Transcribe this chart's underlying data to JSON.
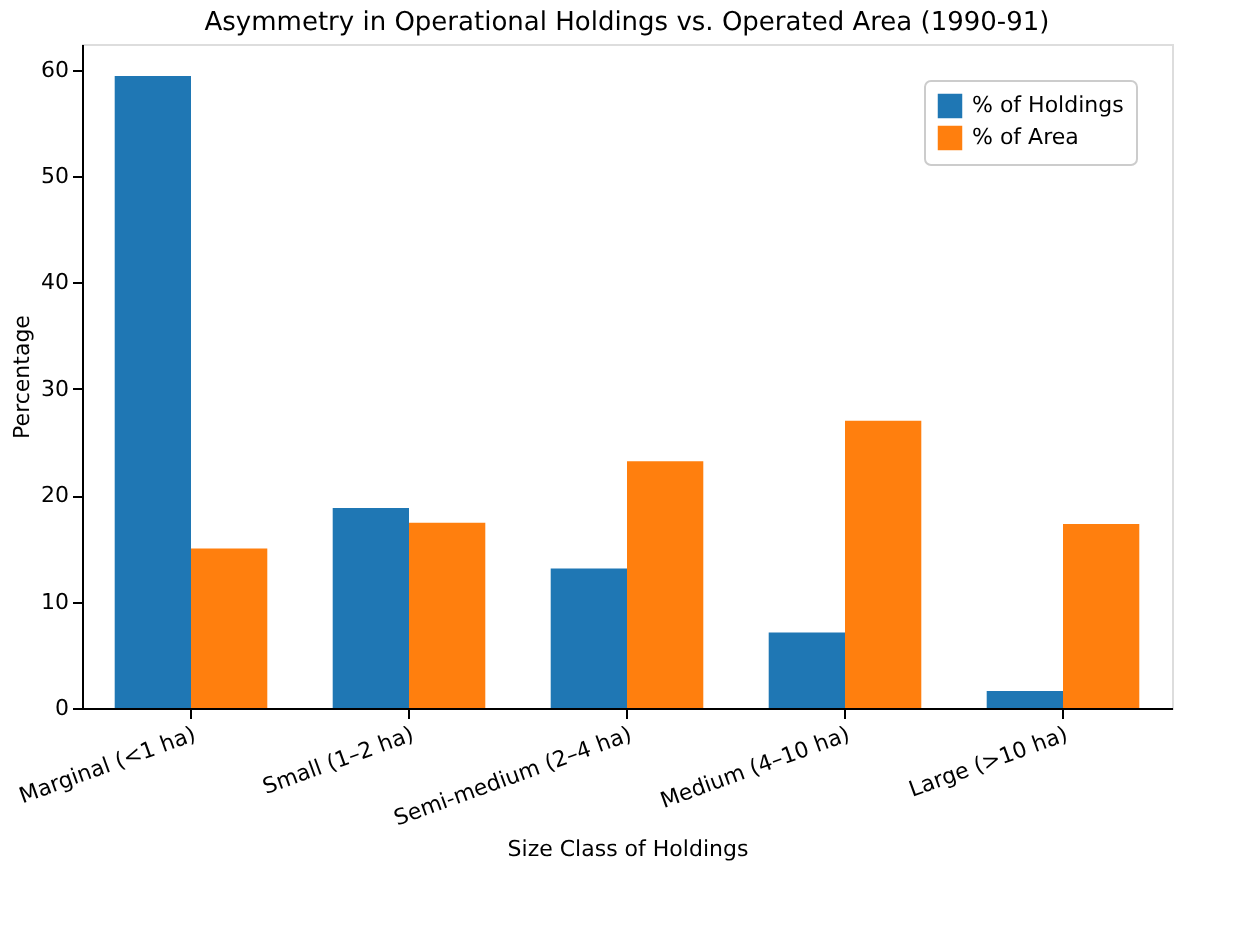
{
  "chart_data": {
    "type": "bar",
    "title": "Asymmetry in Operational Holdings vs. Operated Area (1990-91)",
    "xlabel": "Size Class of Holdings",
    "ylabel": "Percentage",
    "categories": [
      "Marginal (<1 ha)",
      "Small (1–2 ha)",
      "Semi-medium (2–4 ha)",
      "Medium (4–10 ha)",
      "Large (>10 ha)"
    ],
    "series": [
      {
        "name": "% of Holdings",
        "color": "#1f77b4",
        "values": [
          59.4,
          18.8,
          13.1,
          7.1,
          1.6
        ]
      },
      {
        "name": "% of Area",
        "color": "#ff7f0e",
        "values": [
          15.0,
          17.4,
          23.2,
          27.0,
          17.3
        ]
      }
    ],
    "ylim": [
      0,
      62.4
    ],
    "yticks": [
      0,
      10,
      20,
      30,
      40,
      50,
      60
    ],
    "grid": false,
    "legend": "top right"
  }
}
